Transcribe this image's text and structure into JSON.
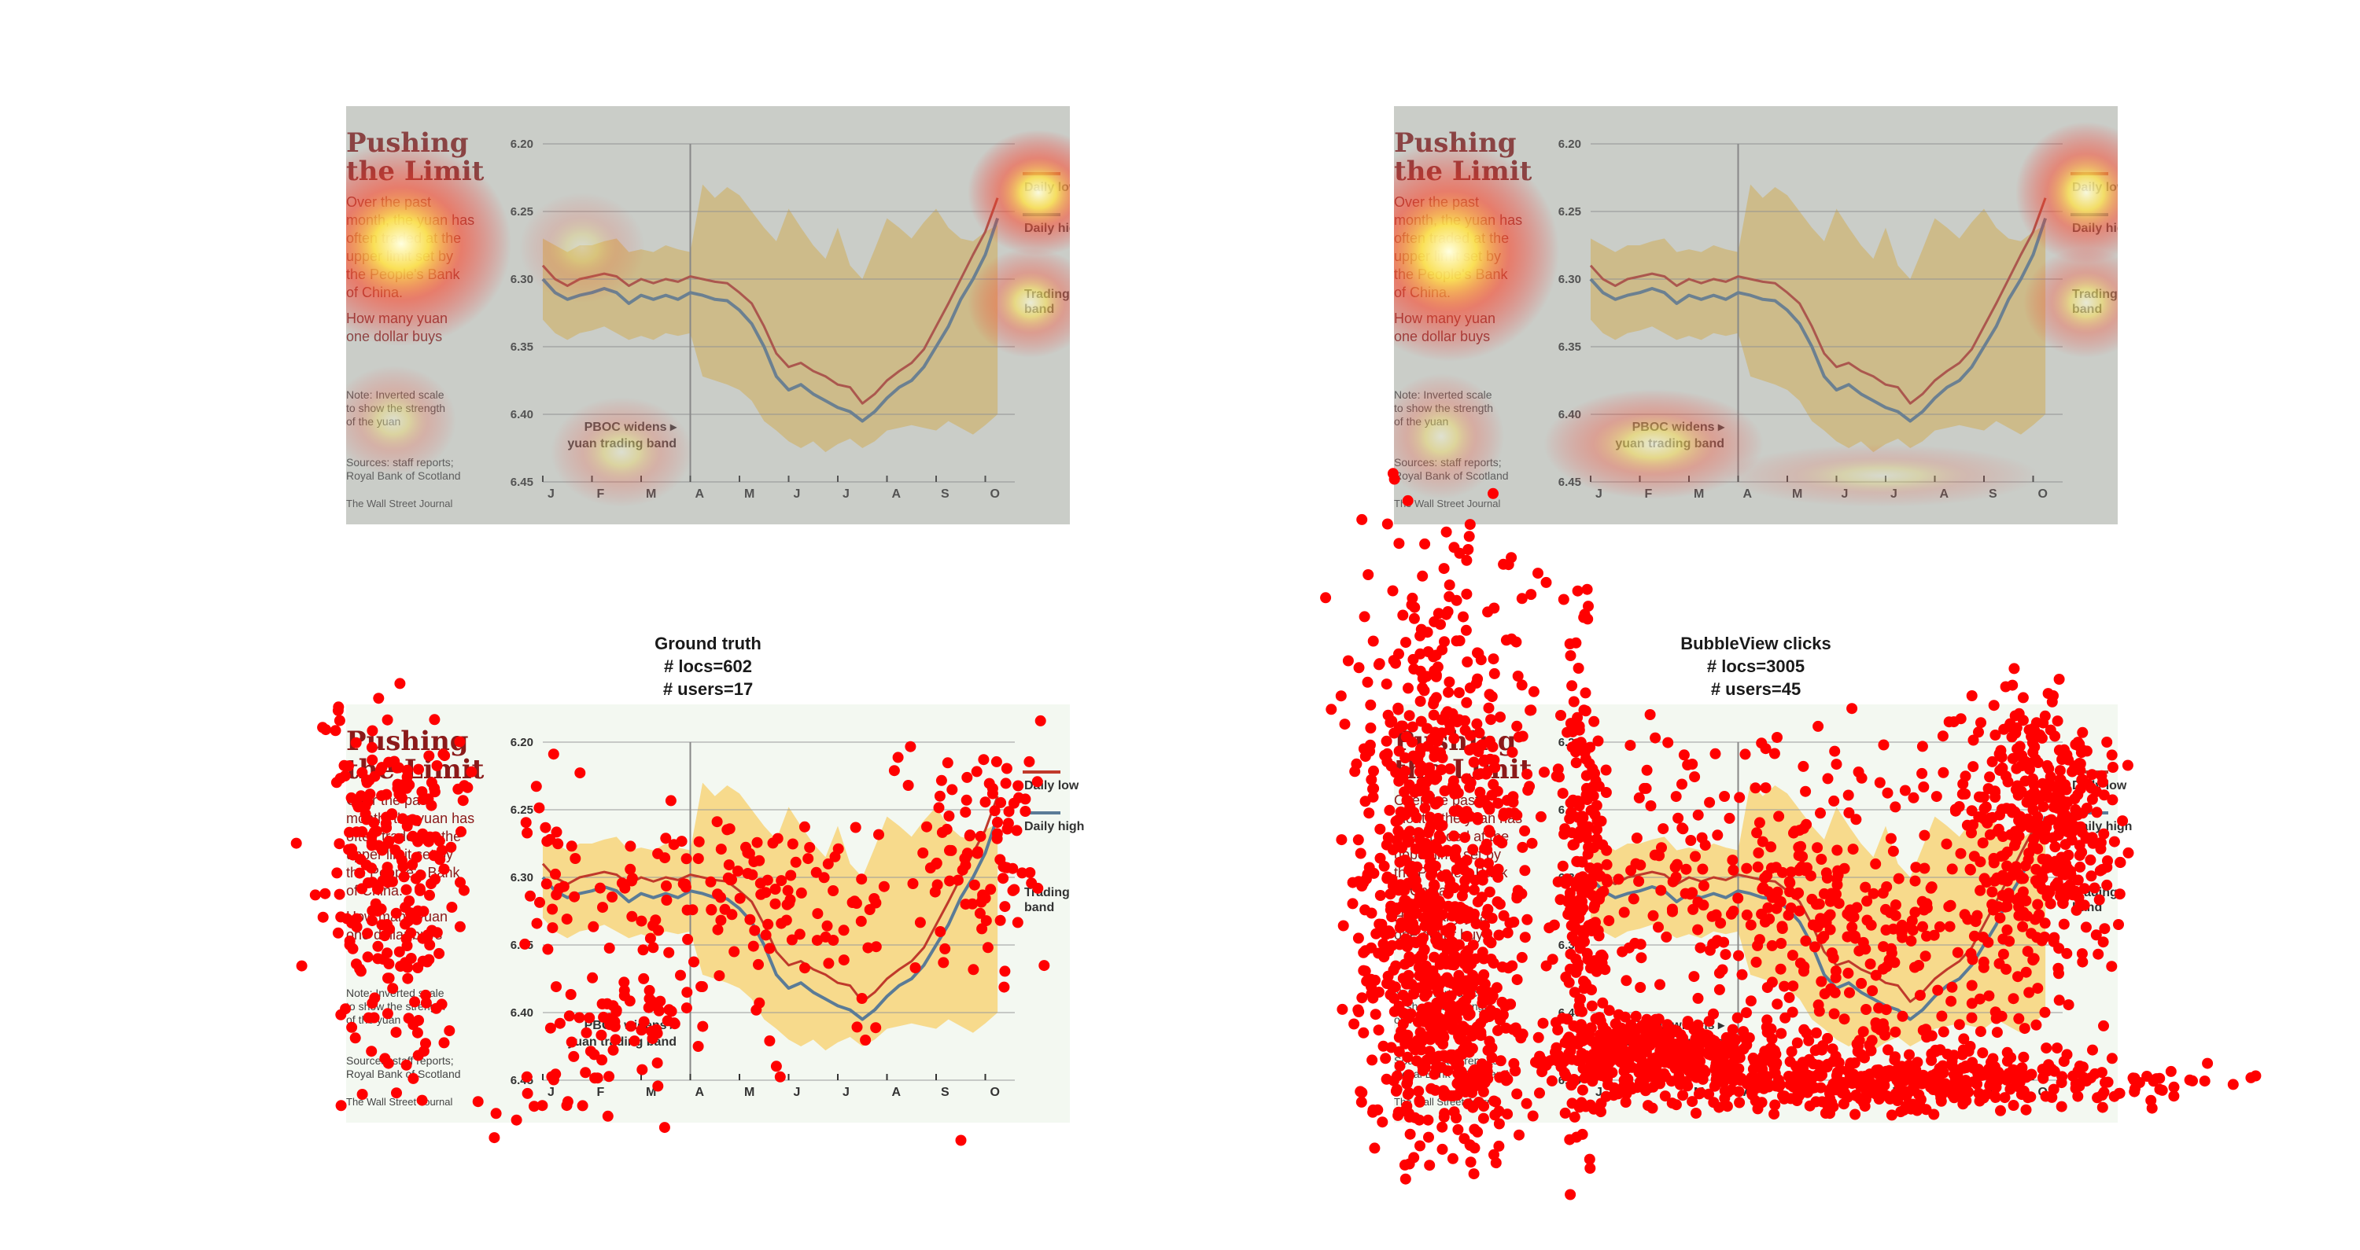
{
  "panels": [
    {
      "id": "heat-left",
      "kind": "heatmap",
      "heat_center": {
        "x": "Over the past",
        "intensity": 1.0
      }
    },
    {
      "id": "heat-right",
      "kind": "heatmap"
    },
    {
      "id": "dots-left",
      "kind": "clicks",
      "title_lines": [
        "Ground truth",
        "# locs=602",
        "# users=17"
      ]
    },
    {
      "id": "dots-right",
      "kind": "clicks",
      "title_lines": [
        "BubbleView clicks",
        "# locs=3005",
        "# users=45"
      ]
    }
  ],
  "infographic": {
    "headline": [
      "Pushing",
      "the Limit"
    ],
    "body": [
      "Over the past",
      "month, the yuan has",
      "often traded at the",
      "upper limit set by",
      "the People's Bank",
      "of China."
    ],
    "subhead": [
      "How many yuan",
      "one dollar buys"
    ],
    "note": [
      "Note: Inverted scale",
      "to show the strength",
      "of the yuan"
    ],
    "sources": [
      "Sources: staff reports;",
      "Royal Bank of Scotland"
    ],
    "credit": "The Wall Street Journal",
    "annotation": [
      "PBOC widens ▸",
      "yuan trading band"
    ],
    "legend": {
      "low": "Daily low",
      "high": "Daily high",
      "band": "Trading band"
    },
    "colors": {
      "low": "#c0392b",
      "high": "#5a7b97",
      "band": "#f7d57a",
      "grid": "#9a9a9a",
      "dot": "#ff0000"
    }
  },
  "chart_data": {
    "type": "line",
    "title": "Pushing the Limit",
    "subtitle": "How many yuan one dollar buys",
    "y_inverted": true,
    "ylim": [
      6.2,
      6.45
    ],
    "yticks": [
      6.2,
      6.25,
      6.3,
      6.35,
      6.4,
      6.45
    ],
    "categories": [
      "J",
      "F",
      "M",
      "A",
      "M",
      "J",
      "J",
      "A",
      "S",
      "O"
    ],
    "x": [
      0,
      0.25,
      0.5,
      0.75,
      1,
      1.25,
      1.5,
      1.75,
      2,
      2.25,
      2.5,
      2.75,
      3,
      3.25,
      3.5,
      3.75,
      4,
      4.25,
      4.5,
      4.75,
      5,
      5.25,
      5.5,
      5.75,
      6,
      6.25,
      6.5,
      6.75,
      7,
      7.25,
      7.5,
      7.75,
      8,
      8.25,
      8.5,
      8.75,
      9,
      9.25
    ],
    "series": [
      {
        "name": "Daily low",
        "values": [
          6.29,
          6.3,
          6.305,
          6.3,
          6.298,
          6.296,
          6.298,
          6.305,
          6.3,
          6.303,
          6.3,
          6.302,
          6.298,
          6.3,
          6.302,
          6.303,
          6.31,
          6.318,
          6.335,
          6.355,
          6.365,
          6.362,
          6.368,
          6.372,
          6.378,
          6.38,
          6.392,
          6.385,
          6.375,
          6.368,
          6.362,
          6.352,
          6.335,
          6.318,
          6.3,
          6.282,
          6.265,
          6.24
        ]
      },
      {
        "name": "Daily high",
        "values": [
          6.3,
          6.31,
          6.315,
          6.312,
          6.31,
          6.307,
          6.31,
          6.318,
          6.312,
          6.315,
          6.312,
          6.315,
          6.31,
          6.312,
          6.315,
          6.316,
          6.323,
          6.333,
          6.35,
          6.372,
          6.382,
          6.378,
          6.385,
          6.39,
          6.395,
          6.398,
          6.405,
          6.398,
          6.388,
          6.38,
          6.375,
          6.365,
          6.35,
          6.335,
          6.315,
          6.3,
          6.282,
          6.255
        ]
      },
      {
        "name": "Trading band",
        "values_top": [
          6.27,
          6.275,
          6.28,
          6.275,
          6.275,
          6.272,
          6.27,
          6.28,
          6.278,
          6.28,
          6.275,
          6.278,
          6.28,
          6.23,
          6.24,
          6.232,
          6.238,
          6.25,
          6.262,
          6.272,
          6.248,
          6.262,
          6.275,
          6.285,
          6.262,
          6.29,
          6.3,
          6.278,
          6.255,
          6.262,
          6.27,
          6.258,
          6.248,
          6.262,
          6.27,
          6.272,
          6.265,
          6.26
        ],
        "values_bottom": [
          6.33,
          6.34,
          6.345,
          6.34,
          6.338,
          6.335,
          6.34,
          6.345,
          6.342,
          6.345,
          6.34,
          6.342,
          6.34,
          6.372,
          6.375,
          6.378,
          6.382,
          6.39,
          6.405,
          6.412,
          6.42,
          6.425,
          6.42,
          6.428,
          6.422,
          6.418,
          6.425,
          6.42,
          6.412,
          6.41,
          6.408,
          6.41,
          6.412,
          6.405,
          6.41,
          6.415,
          6.408,
          6.4
        ]
      }
    ]
  }
}
